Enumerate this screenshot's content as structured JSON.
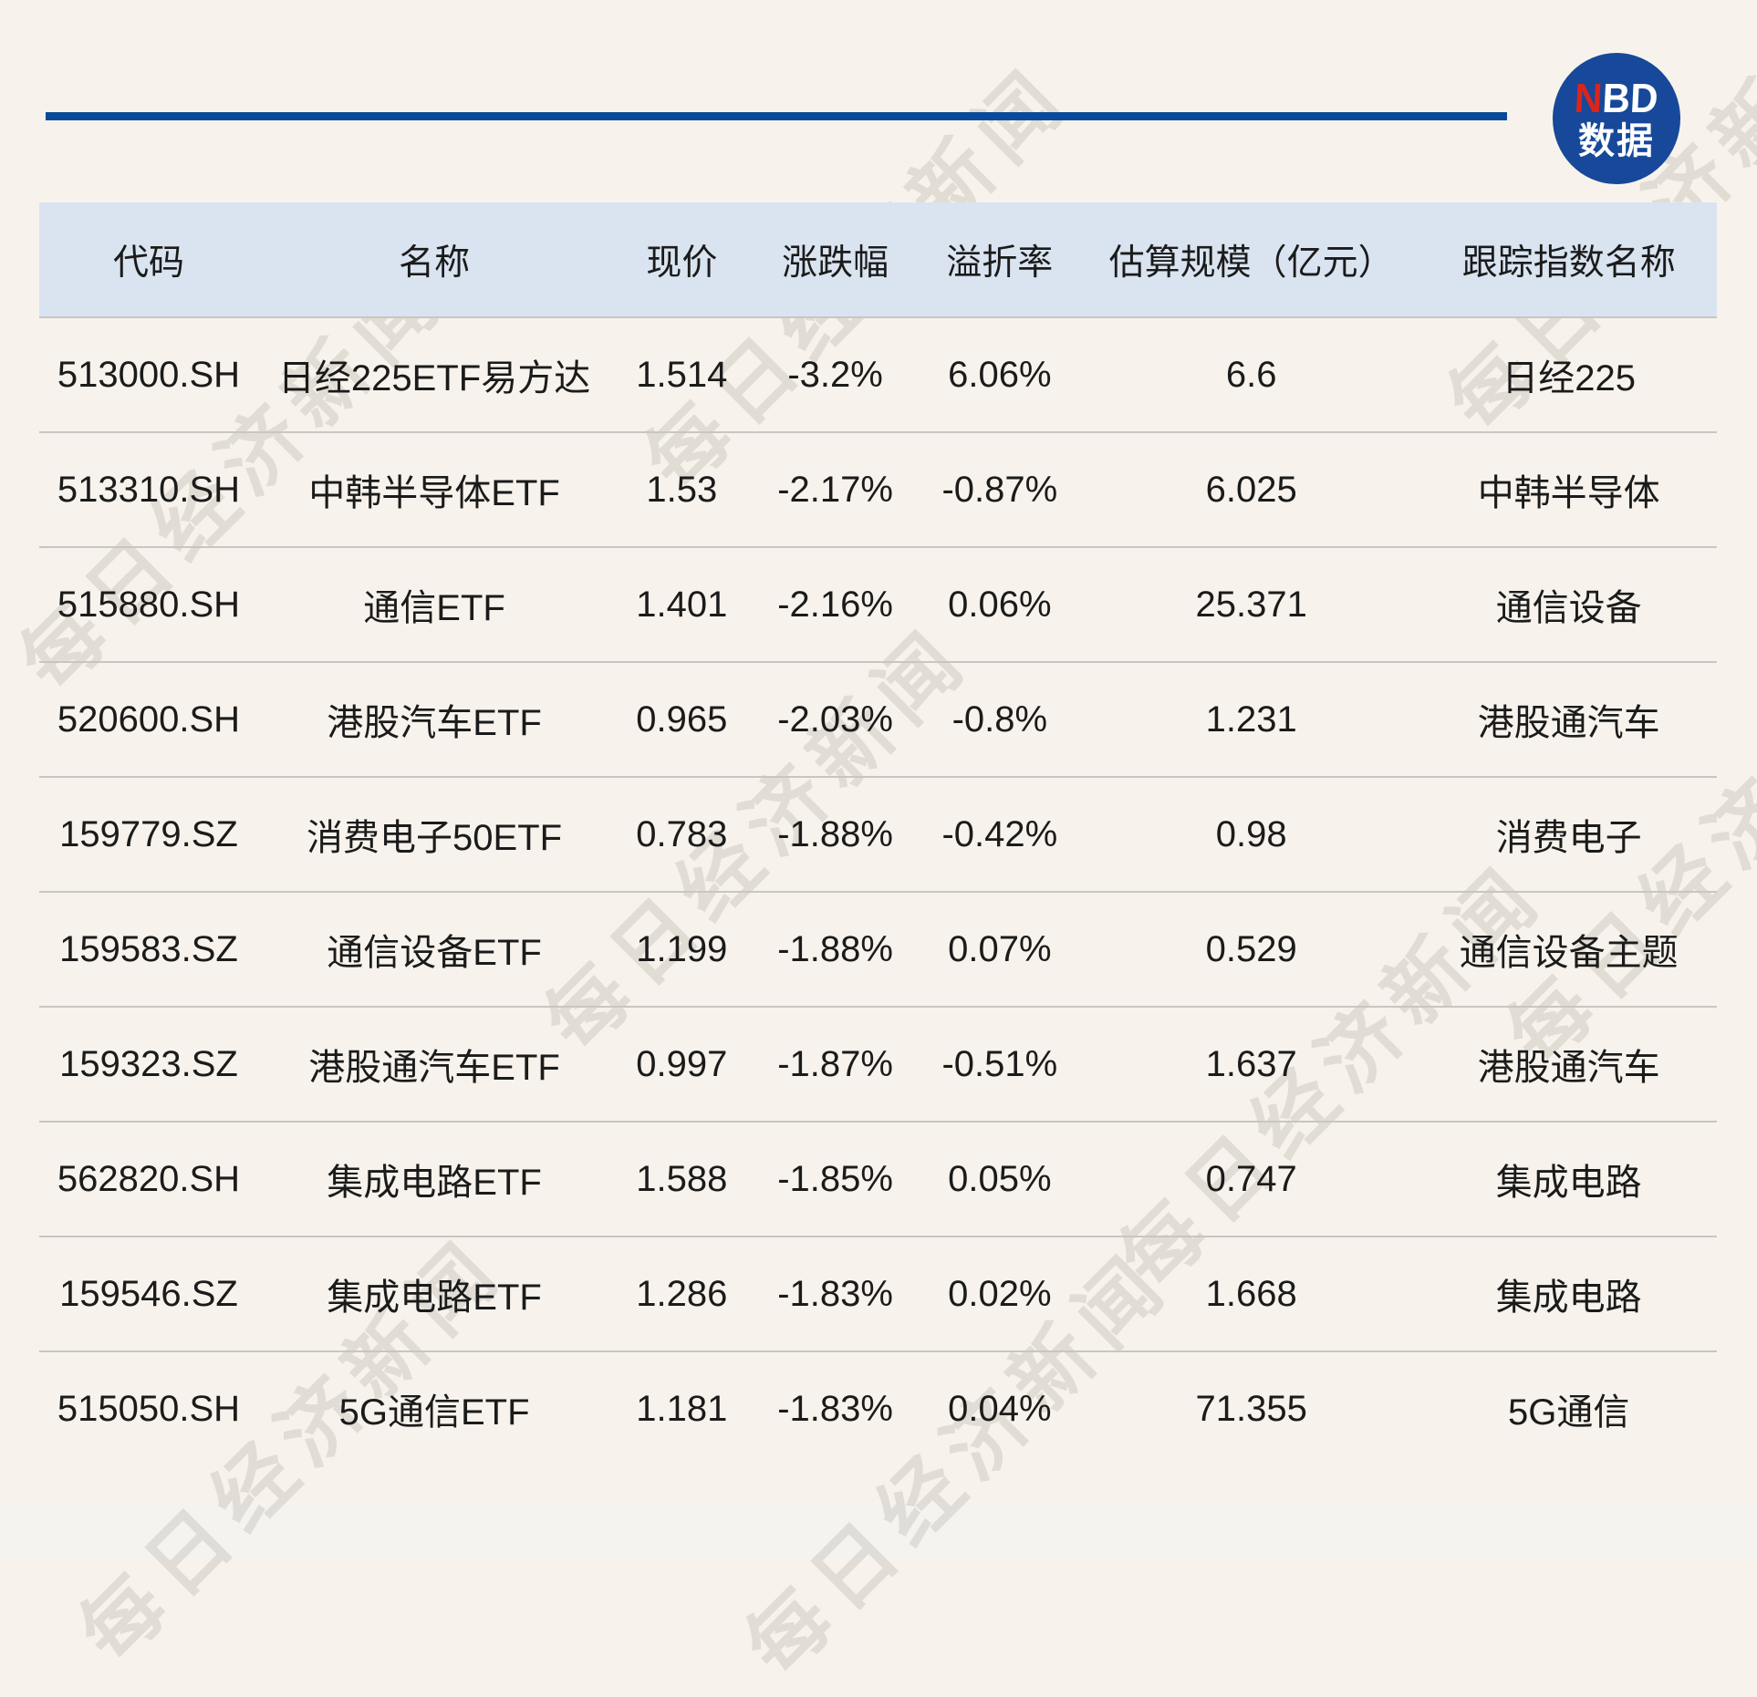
{
  "brand": {
    "logo_n": "N",
    "logo_bd": "BD",
    "logo_line2": "数据"
  },
  "watermark": {
    "text": "每日经济新闻"
  },
  "colors": {
    "page_bg": "#f7f3ec",
    "header_bg": "#d9e4f0",
    "rule_navy": "#0b4a9b",
    "logo_circle": "#17489a",
    "logo_red": "#da251c",
    "separator": "#c9c6c1",
    "text": "#1b1b1b"
  },
  "chart_data": {
    "type": "table",
    "title": "",
    "columns": [
      "代码",
      "名称",
      "现价",
      "涨跌幅",
      "溢折率",
      "估算规模（亿元）",
      "跟踪指数名称"
    ],
    "rows": [
      [
        "513000.SH",
        "日经225ETF易方达",
        "1.514",
        "-3.2%",
        "6.06%",
        "6.6",
        "日经225"
      ],
      [
        "513310.SH",
        "中韩半导体ETF",
        "1.53",
        "-2.17%",
        "-0.87%",
        "6.025",
        "中韩半导体"
      ],
      [
        "515880.SH",
        "通信ETF",
        "1.401",
        "-2.16%",
        "0.06%",
        "25.371",
        "通信设备"
      ],
      [
        "520600.SH",
        "港股汽车ETF",
        "0.965",
        "-2.03%",
        "-0.8%",
        "1.231",
        "港股通汽车"
      ],
      [
        "159779.SZ",
        "消费电子50ETF",
        "0.783",
        "-1.88%",
        "-0.42%",
        "0.98",
        "消费电子"
      ],
      [
        "159583.SZ",
        "通信设备ETF",
        "1.199",
        "-1.88%",
        "0.07%",
        "0.529",
        "通信设备主题"
      ],
      [
        "159323.SZ",
        "港股通汽车ETF",
        "0.997",
        "-1.87%",
        "-0.51%",
        "1.637",
        "港股通汽车"
      ],
      [
        "562820.SH",
        "集成电路ETF",
        "1.588",
        "-1.85%",
        "0.05%",
        "0.747",
        "集成电路"
      ],
      [
        "159546.SZ",
        "集成电路ETF",
        "1.286",
        "-1.83%",
        "0.02%",
        "1.668",
        "集成电路"
      ],
      [
        "515050.SH",
        "5G通信ETF",
        "1.181",
        "-1.83%",
        "0.04%",
        "71.355",
        "5G通信"
      ]
    ]
  }
}
